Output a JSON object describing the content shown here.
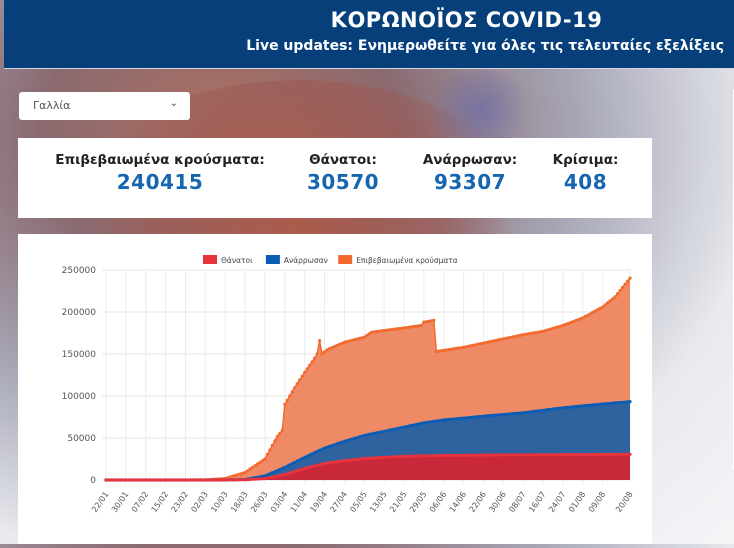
{
  "header": {
    "title": "ΚΟΡΩΝΟΪΟΣ COVID-19",
    "subtitle": "Live updates: Ενημερωθείτε για όλες τις τελευταίες εξελίξεις"
  },
  "country_select": {
    "value": "Γαλλία",
    "icon": "chevron-down-icon"
  },
  "stats": [
    {
      "label": "Επιβεβαιωμένα κρούσματα:",
      "value": "240415"
    },
    {
      "label": "Θάνατοι:",
      "value": "30570"
    },
    {
      "label": "Ανάρρωσαν:",
      "value": "93307"
    },
    {
      "label": "Κρίσιμα:",
      "value": "408"
    }
  ],
  "chart_data": {
    "type": "area",
    "x_ticks": [
      "22/01",
      "30/01",
      "07/02",
      "15/02",
      "23/02",
      "02/03",
      "10/03",
      "18/03",
      "26/03",
      "03/04",
      "11/04",
      "19/04",
      "27/04",
      "05/05",
      "13/05",
      "21/05",
      "29/05",
      "06/06",
      "14/06",
      "22/06",
      "30/06",
      "08/07",
      "16/07",
      "24/07",
      "01/08",
      "09/08",
      "20/08"
    ],
    "y_ticks": [
      0,
      50000,
      100000,
      150000,
      200000,
      250000
    ],
    "ylim": [
      0,
      250000
    ],
    "xlim": [
      "22/01",
      "20/08"
    ],
    "grid": true,
    "legend_position": "top",
    "series": [
      {
        "name": "Θάνατοι",
        "color": "#e8323c",
        "fill": "#c8283a",
        "points": [
          [
            "22/01",
            0
          ],
          [
            "15/02",
            0
          ],
          [
            "10/03",
            30
          ],
          [
            "18/03",
            260
          ],
          [
            "26/03",
            1700
          ],
          [
            "03/04",
            6500
          ],
          [
            "11/04",
            13800
          ],
          [
            "19/04",
            19700
          ],
          [
            "27/04",
            23000
          ],
          [
            "05/05",
            25500
          ],
          [
            "13/05",
            27000
          ],
          [
            "21/05",
            28200
          ],
          [
            "29/05",
            28700
          ],
          [
            "06/06",
            29200
          ],
          [
            "22/06",
            29700
          ],
          [
            "08/07",
            30000
          ],
          [
            "24/07",
            30200
          ],
          [
            "09/08",
            30350
          ],
          [
            "20/08",
            30570
          ]
        ]
      },
      {
        "name": "Ανάρρωσαν",
        "color": "#0b5cb5",
        "fill": "#2f63a0",
        "points": [
          [
            "22/01",
            0
          ],
          [
            "15/02",
            0
          ],
          [
            "10/03",
            12
          ],
          [
            "18/03",
            600
          ],
          [
            "26/03",
            5000
          ],
          [
            "03/04",
            15000
          ],
          [
            "11/04",
            27000
          ],
          [
            "19/04",
            38000
          ],
          [
            "27/04",
            46000
          ],
          [
            "05/05",
            53000
          ],
          [
            "13/05",
            58000
          ],
          [
            "21/05",
            63000
          ],
          [
            "29/05",
            68000
          ],
          [
            "06/06",
            71500
          ],
          [
            "22/06",
            76000
          ],
          [
            "08/07",
            80000
          ],
          [
            "24/07",
            86000
          ],
          [
            "09/08",
            90500
          ],
          [
            "20/08",
            93307
          ]
        ]
      },
      {
        "name": "Επιβεβαιωμένα κρούσματα",
        "color": "#f26a2e",
        "fill": "#ef8a66",
        "points": [
          [
            "22/01",
            0
          ],
          [
            "23/02",
            12
          ],
          [
            "02/03",
            190
          ],
          [
            "10/03",
            1800
          ],
          [
            "18/03",
            9000
          ],
          [
            "26/03",
            25000
          ],
          [
            "31/03",
            52000
          ],
          [
            "02/04",
            59000
          ],
          [
            "03/04",
            90000
          ],
          [
            "07/04",
            110000
          ],
          [
            "11/04",
            128000
          ],
          [
            "15/04",
            145000
          ],
          [
            "16/04",
            150000
          ],
          [
            "17/04",
            166000
          ],
          [
            "18/04",
            150000
          ],
          [
            "20/04",
            155000
          ],
          [
            "27/04",
            164000
          ],
          [
            "05/05",
            170000
          ],
          [
            "08/05",
            176000
          ],
          [
            "13/05",
            178000
          ],
          [
            "21/05",
            181000
          ],
          [
            "28/05",
            184000
          ],
          [
            "29/05",
            188000
          ],
          [
            "02/06",
            190000
          ],
          [
            "03/06",
            153000
          ],
          [
            "14/06",
            158000
          ],
          [
            "22/06",
            163000
          ],
          [
            "30/06",
            168000
          ],
          [
            "08/07",
            173000
          ],
          [
            "16/07",
            177000
          ],
          [
            "24/07",
            184000
          ],
          [
            "01/08",
            193000
          ],
          [
            "09/08",
            206000
          ],
          [
            "14/08",
            218000
          ],
          [
            "20/08",
            240415
          ]
        ]
      }
    ]
  }
}
